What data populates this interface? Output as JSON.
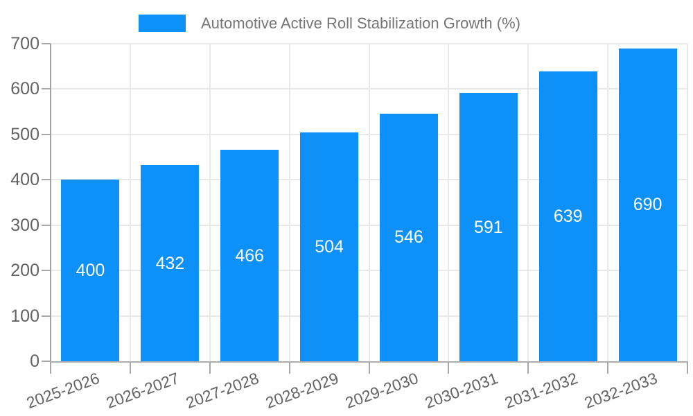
{
  "legend": {
    "label": "Automotive Active Roll Stabilization Growth (%)"
  },
  "colors": {
    "bar": "#0e90f9",
    "gridline": "#e8e8e8",
    "axis": "#a8a8a8",
    "tick_label": "#636363",
    "legend_text": "#757575",
    "value_label": "#ffffff",
    "background": "#ffffff"
  },
  "chart_data": {
    "type": "bar",
    "title": "Automotive Active Roll Stabilization Growth (%)",
    "categories": [
      "2025-2026",
      "2026-2027",
      "2027-2028",
      "2028-2029",
      "2029-2030",
      "2030-2031",
      "2031-2032",
      "2032-2033"
    ],
    "values": [
      400,
      432,
      466,
      504,
      546,
      591,
      639,
      690
    ],
    "xlabel": "",
    "ylabel": "",
    "ylim": [
      0,
      700
    ],
    "yticks": [
      0,
      100,
      200,
      300,
      400,
      500,
      600,
      700
    ],
    "grid": true,
    "legend_position": "top",
    "bar_color": "#0e90f9",
    "value_labels_inside": true
  }
}
